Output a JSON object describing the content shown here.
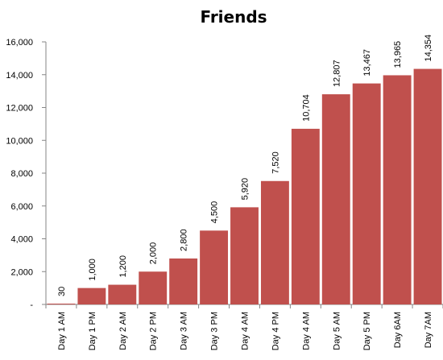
{
  "chart_data": {
    "type": "bar",
    "title": "Friends",
    "xlabel": "",
    "ylabel": "",
    "categories": [
      "Day 1 AM",
      "Day 1 PM",
      "Day 2 AM",
      "Day 2 PM",
      "Day 3 AM",
      "Day 3 PM",
      "Day 4 AM",
      "Day 4 PM",
      "Day 4 AM",
      "Day 5 AM",
      "Day 5 PM",
      "Day 6AM",
      "Day 7AM"
    ],
    "values": [
      30,
      1000,
      1200,
      2000,
      2800,
      4500,
      5920,
      7520,
      10704,
      12807,
      13467,
      13965,
      14354
    ],
    "data_labels": [
      "30",
      "1,000",
      "1,200",
      "2,000",
      "2,800",
      "4,500",
      "5,920",
      "7,520",
      "10,704",
      "12,807",
      "13,467",
      "13,965",
      "14,354"
    ],
    "ylim": [
      0,
      16000
    ],
    "y_ticks": [
      0,
      2000,
      4000,
      6000,
      8000,
      10000,
      12000,
      14000,
      16000
    ],
    "y_tick_labels": [
      "-",
      "2,000",
      "4,000",
      "6,000",
      "8,000",
      "10,000",
      "12,000",
      "14,000",
      "16,000"
    ],
    "bar_color": "#C0504D",
    "grid": false,
    "legend": "none"
  }
}
